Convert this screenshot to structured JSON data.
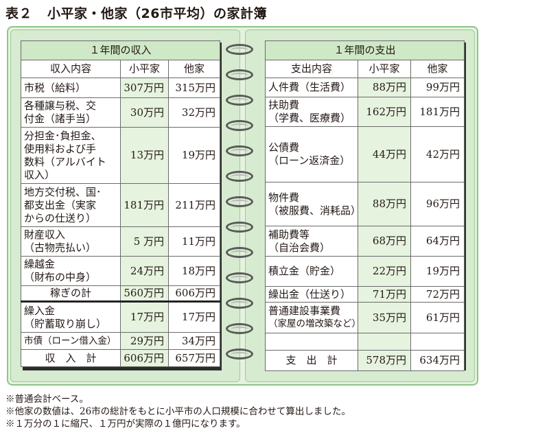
{
  "title": {
    "tag": "表２",
    "text": "小平家・他家（26市平均）の家計簿"
  },
  "income": {
    "heading": "１年間の収入",
    "columns": [
      "収入内容",
      "小平家",
      "他家"
    ],
    "rows": [
      {
        "lines": [
          "市税（給料）"
        ],
        "kodaira": "307万円",
        "others": "315万円"
      },
      {
        "lines": [
          "各種譲与税、交",
          "付金（諸手当）"
        ],
        "kodaira": "30万円",
        "others": "32万円"
      },
      {
        "lines": [
          "分担金･負担金、",
          "使用料および手",
          "数料（アルバイト",
          "収入）"
        ],
        "kodaira": "13万円",
        "others": "19万円"
      },
      {
        "lines": [
          "地方交付税、国･",
          "都支出金（実家",
          "からの仕送り）"
        ],
        "kodaira": "181万円",
        "others": "211万円"
      },
      {
        "lines": [
          "財産収入",
          "（古物売払い）"
        ],
        "kodaira": "5 万円",
        "others": "11万円"
      },
      {
        "lines": [
          "繰越金",
          "（財布の中身）"
        ],
        "kodaira": "24万円",
        "others": "18万円"
      },
      {
        "lines": [
          "稼ぎの計"
        ],
        "kodaira": "560万円",
        "others": "606万円"
      },
      {
        "lines": [
          "繰入金",
          "（貯蓄取り崩し）"
        ],
        "kodaira": "17万円",
        "others": "17万円"
      },
      {
        "lines": [
          "市債（ローン借入金）"
        ],
        "kodaira": "29万円",
        "others": "34万円"
      }
    ],
    "total": {
      "label": "収　入　計",
      "kodaira": "606万円",
      "others": "657万円"
    }
  },
  "expenditure": {
    "heading": "１年間の支出",
    "columns": [
      "支出内容",
      "小平家",
      "他家"
    ],
    "rows": [
      {
        "lines": [
          "人件費（生活費）"
        ],
        "kodaira": "88万円",
        "others": "99万円"
      },
      {
        "lines": [
          "扶助費",
          "（学費、医療費）"
        ],
        "kodaira": "162万円",
        "others": "181万円"
      },
      {
        "lines": [
          "公債費",
          "（ローン返済金）"
        ],
        "kodaira": "44万円",
        "others": "42万円"
      },
      {
        "lines": [
          "物件費",
          "（被服費、消耗品）"
        ],
        "kodaira": "88万円",
        "others": "96万円"
      },
      {
        "lines": [
          "補助費等",
          "（自治会費）"
        ],
        "kodaira": "68万円",
        "others": "64万円"
      },
      {
        "lines": [
          "積立金（貯金）"
        ],
        "kodaira": "22万円",
        "others": "19万円"
      },
      {
        "lines": [
          "繰出金（仕送り）"
        ],
        "kodaira": "71万円",
        "others": "72万円"
      },
      {
        "lines": [
          "普通建設事業費",
          "（家屋の増改築など）"
        ],
        "kodaira": "35万円",
        "others": "61万円"
      },
      {
        "lines": [
          ""
        ],
        "kodaira": "",
        "others": ""
      }
    ],
    "total": {
      "label": "支　出　計",
      "kodaira": "578万円",
      "others": "634万円"
    }
  },
  "notes": [
    "※普通会計ベース。",
    "※他家の数値は、26市の総計をもとに小平市の人口規模に合わせて算出しました。",
    "※１万分の１に縮尺、１万円が実際の１億円になります。"
  ]
}
